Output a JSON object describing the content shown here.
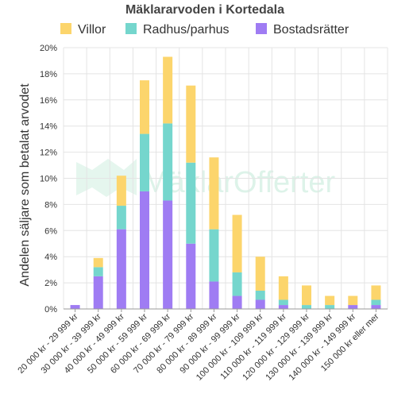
{
  "colors": {
    "villor": "#fcd56c",
    "radhus": "#75d6cd",
    "bostadsratter": "#9f7cf3",
    "watermark": "#cfeee0"
  },
  "watermark": "MäklarOfferter",
  "chart_data": {
    "type": "bar",
    "stacked": true,
    "title": "Mäklararvoden i Kortedala",
    "xlabel": "",
    "ylabel": "Andelen säljare som betalat arvodet",
    "ylim": [
      0,
      20
    ],
    "yticks": [
      "0%",
      "2%",
      "4%",
      "6%",
      "8%",
      "10%",
      "12%",
      "14%",
      "16%",
      "18%",
      "20%"
    ],
    "legend_position": "top",
    "grid": true,
    "categories": [
      "20 000 kr - 29 999 kr",
      "30 000 kr - 39 999 kr",
      "40 000 kr - 49 999 kr",
      "50 000 kr - 59 999 kr",
      "60 000 kr - 69 999 kr",
      "70 000 kr - 79 999 kr",
      "80 000 kr - 89 999 kr",
      "90 000 kr - 99 999 kr",
      "100 000 kr - 109 999 kr",
      "110 000 kr - 119 999 kr",
      "120 000 kr - 129 999 kr",
      "130 000 kr - 139 999 kr",
      "140 000 kr - 149 999 kr",
      "150 000 kr eller mer"
    ],
    "series": [
      {
        "name": "Bostadsrätter",
        "color": "#9f7cf3",
        "values": [
          0.3,
          2.5,
          6.1,
          9.0,
          8.3,
          5.0,
          2.1,
          1.0,
          0.7,
          0.3,
          0.0,
          0.0,
          0.3,
          0.3
        ]
      },
      {
        "name": "Radhus/parhus",
        "color": "#75d6cd",
        "values": [
          0.0,
          0.7,
          1.8,
          4.4,
          5.9,
          6.2,
          4.0,
          1.8,
          0.7,
          0.4,
          0.3,
          0.3,
          0.0,
          0.4
        ]
      },
      {
        "name": "Villor",
        "color": "#fcd56c",
        "values": [
          0.0,
          0.7,
          2.3,
          4.1,
          5.1,
          5.9,
          5.5,
          4.4,
          2.6,
          1.8,
          1.5,
          0.7,
          0.7,
          1.1
        ]
      }
    ],
    "legend": [
      {
        "name": "Villor",
        "color": "#fcd56c"
      },
      {
        "name": "Radhus/parhus",
        "color": "#75d6cd"
      },
      {
        "name": "Bostadsrätter",
        "color": "#9f7cf3"
      }
    ]
  }
}
